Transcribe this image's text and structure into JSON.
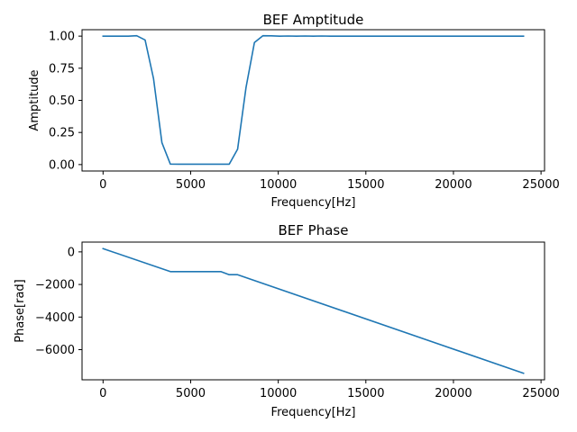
{
  "chart_data": [
    {
      "type": "line",
      "title": "BEF Amptitude",
      "xlabel": "Frequency[Hz]",
      "ylabel": "Amptitude",
      "xlim": [
        -1200,
        25200
      ],
      "ylim": [
        -0.05,
        1.05
      ],
      "xticks": [
        0,
        5000,
        10000,
        15000,
        20000,
        25000
      ],
      "yticks": [
        0.0,
        0.25,
        0.5,
        0.75,
        1.0
      ],
      "xtick_labels": [
        "0",
        "5000",
        "10000",
        "15000",
        "20000",
        "25000"
      ],
      "ytick_labels": [
        "0.00",
        "0.25",
        "0.50",
        "0.75",
        "1.00"
      ],
      "grid": false,
      "color": "#1f77b4",
      "x": [
        0,
        480,
        960,
        1440,
        1920,
        2400,
        2880,
        3360,
        3840,
        4320,
        4800,
        5280,
        5760,
        6240,
        6720,
        7200,
        7680,
        8160,
        8640,
        9120,
        9600,
        10080,
        10560,
        11040,
        11520,
        12000,
        12480,
        12960,
        13440,
        13920,
        14400,
        14880,
        15360,
        15840,
        16320,
        16800,
        17280,
        17760,
        18240,
        18720,
        19200,
        19680,
        20160,
        20640,
        21120,
        21600,
        22080,
        22560,
        23040,
        23520,
        24000
      ],
      "y": [
        1.0,
        1.0,
        1.0,
        1.0,
        1.003,
        0.97,
        0.67,
        0.17,
        0.004,
        0.003,
        0.003,
        0.003,
        0.003,
        0.003,
        0.003,
        0.003,
        0.12,
        0.6,
        0.95,
        1.003,
        1.002,
        1.0,
        1.001,
        1.0,
        1.001,
        1.0,
        1.001,
        1.0,
        1.0,
        1.0,
        1.0,
        1.0,
        1.0,
        1.0,
        1.0,
        1.0,
        1.0,
        1.0,
        1.0,
        1.0,
        1.0,
        1.0,
        1.0,
        1.0,
        1.0,
        1.0,
        1.0,
        1.0,
        1.0,
        1.0,
        1.0
      ]
    },
    {
      "type": "line",
      "title": "BEF Phase",
      "xlabel": "Frequency[Hz]",
      "ylabel": "Phase[rad]",
      "xlim": [
        -1200,
        25200
      ],
      "ylim": [
        -7850,
        600
      ],
      "xticks": [
        0,
        5000,
        10000,
        15000,
        20000,
        25000
      ],
      "yticks": [
        -6000,
        -4000,
        -2000,
        0
      ],
      "xtick_labels": [
        "0",
        "5000",
        "10000",
        "15000",
        "20000",
        "25000"
      ],
      "ytick_labels": [
        "−6000",
        "−4000",
        "−2000",
        "0"
      ],
      "grid": false,
      "color": "#1f77b4",
      "x": [
        0,
        3840,
        6720,
        7200,
        7680,
        24000
      ],
      "y": [
        200,
        -1210,
        -1210,
        -1400,
        -1400,
        -7450
      ]
    }
  ]
}
